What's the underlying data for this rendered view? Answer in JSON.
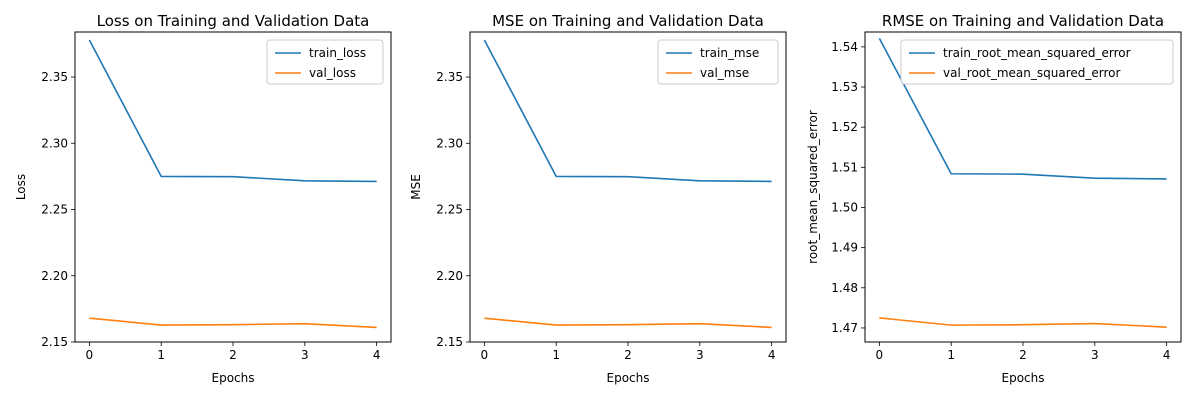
{
  "chart_data": [
    {
      "type": "line",
      "title": "Loss on Training and Validation Data",
      "xlabel": "Epochs",
      "ylabel": "Loss",
      "xlim": [
        -0.2,
        4.2
      ],
      "ylim": [
        2.15,
        2.384
      ],
      "xticks": [
        0,
        1,
        2,
        3,
        4
      ],
      "xtick_labels": [
        "0",
        "1",
        "2",
        "3",
        "4"
      ],
      "yticks": [
        2.15,
        2.2,
        2.25,
        2.3,
        2.35
      ],
      "ytick_labels": [
        "2.15",
        "2.20",
        "2.25",
        "2.30",
        "2.35"
      ],
      "grid": false,
      "legend_position": "top-right",
      "x": [
        0,
        1,
        2,
        3,
        4
      ],
      "series": [
        {
          "name": "train_loss",
          "color": "#1f77b4",
          "values": [
            2.378,
            2.275,
            2.2748,
            2.2717,
            2.2712
          ]
        },
        {
          "name": "val_loss",
          "color": "#ff7f0e",
          "values": [
            2.168,
            2.1628,
            2.1631,
            2.1638,
            2.161
          ]
        }
      ]
    },
    {
      "type": "line",
      "title": "MSE  on Training and Validation Data",
      "xlabel": "Epochs",
      "ylabel": "MSE",
      "xlim": [
        -0.2,
        4.2
      ],
      "ylim": [
        2.15,
        2.384
      ],
      "xticks": [
        0,
        1,
        2,
        3,
        4
      ],
      "xtick_labels": [
        "0",
        "1",
        "2",
        "3",
        "4"
      ],
      "yticks": [
        2.15,
        2.2,
        2.25,
        2.3,
        2.35
      ],
      "ytick_labels": [
        "2.15",
        "2.20",
        "2.25",
        "2.30",
        "2.35"
      ],
      "grid": false,
      "legend_position": "top-right",
      "x": [
        0,
        1,
        2,
        3,
        4
      ],
      "series": [
        {
          "name": "train_mse",
          "color": "#1f77b4",
          "values": [
            2.378,
            2.275,
            2.2748,
            2.2717,
            2.2712
          ]
        },
        {
          "name": "val_mse",
          "color": "#ff7f0e",
          "values": [
            2.168,
            2.1628,
            2.1631,
            2.1638,
            2.161
          ]
        }
      ]
    },
    {
      "type": "line",
      "title": "RMSE on Training and Validation Data",
      "xlabel": "Epochs",
      "ylabel": "root_mean_squared_error",
      "xlim": [
        -0.2,
        4.2
      ],
      "ylim": [
        1.4665,
        1.5437
      ],
      "xticks": [
        0,
        1,
        2,
        3,
        4
      ],
      "xtick_labels": [
        "0",
        "1",
        "2",
        "3",
        "4"
      ],
      "yticks": [
        1.47,
        1.48,
        1.49,
        1.5,
        1.51,
        1.52,
        1.53,
        1.54
      ],
      "ytick_labels": [
        "1.47",
        "1.48",
        "1.49",
        "1.50",
        "1.51",
        "1.52",
        "1.53",
        "1.54"
      ],
      "grid": false,
      "legend_position": "top-right",
      "x": [
        0,
        1,
        2,
        3,
        4
      ],
      "series": [
        {
          "name": "train_root_mean_squared_error",
          "color": "#1f77b4",
          "values": [
            1.5421,
            1.5084,
            1.5083,
            1.5073,
            1.5071
          ]
        },
        {
          "name": "val_root_mean_squared_error",
          "color": "#ff7f0e",
          "values": [
            1.4725,
            1.4707,
            1.4708,
            1.4711,
            1.4702
          ]
        }
      ]
    }
  ]
}
